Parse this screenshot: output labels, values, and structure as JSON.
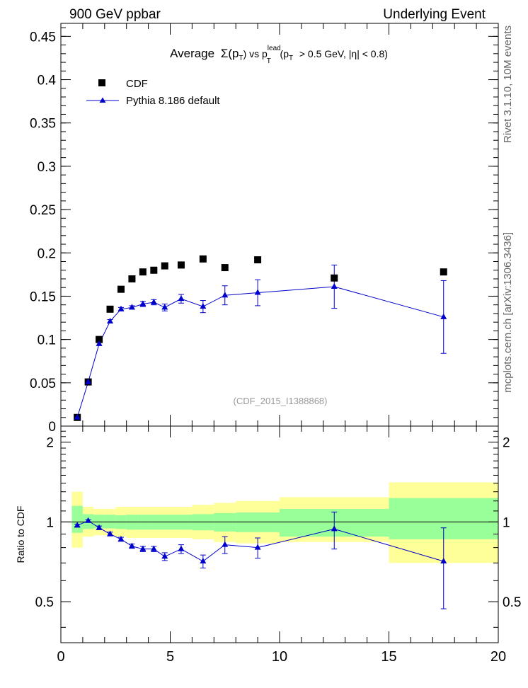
{
  "header": {
    "left": "900 GeV ppbar",
    "right": "Underlying Event"
  },
  "side_labels": {
    "rivet": "Rivet 3.1.10, 10M events",
    "mcplots": "mcplots.cern.ch [arXiv:1306.3436]"
  },
  "colors": {
    "data": "#000000",
    "mc": "#0000cc",
    "band_inner": "#99ff99",
    "band_outer": "#ffff99",
    "watermark": "#999999"
  },
  "chart_data": [
    {
      "type": "scatter",
      "title_parts": {
        "avg": "Average",
        "sigma": "Σ(p",
        "t1": "T",
        "close": ") vs p",
        "lead": "lead",
        "t2": "T",
        "cut1": "(p",
        "t3": "T",
        "cut2": "> 0.5 GeV, |η| < 0.8)"
      },
      "watermark": "(CDF_2015_I1388868)",
      "xlim": [
        0,
        20
      ],
      "ylim": [
        0,
        0.465
      ],
      "yticks": [
        "0",
        "0.05",
        "0.1",
        "0.15",
        "0.2",
        "0.25",
        "0.3",
        "0.35",
        "0.4",
        "0.45"
      ],
      "grid": false,
      "legend_position": "top-left",
      "series": [
        {
          "name": "CDF",
          "marker": "square",
          "x": [
            0.75,
            1.25,
            1.75,
            2.25,
            2.75,
            3.25,
            3.75,
            4.25,
            4.75,
            5.5,
            6.5,
            7.5,
            9.0,
            12.5,
            17.5
          ],
          "y": [
            0.01,
            0.051,
            0.1,
            0.135,
            0.158,
            0.17,
            0.178,
            0.18,
            0.185,
            0.186,
            0.193,
            0.183,
            0.192,
            0.171,
            0.178
          ]
        },
        {
          "name": "Pythia 8.186 default",
          "marker": "triangle",
          "x": [
            0.75,
            1.25,
            1.75,
            2.25,
            2.75,
            3.25,
            3.75,
            4.25,
            4.75,
            5.5,
            6.5,
            7.5,
            9.0,
            12.5,
            17.5
          ],
          "y": [
            0.01,
            0.051,
            0.095,
            0.121,
            0.135,
            0.137,
            0.141,
            0.143,
            0.137,
            0.147,
            0.138,
            0.151,
            0.154,
            0.161,
            0.126
          ],
          "yerr": [
            0.001,
            0.001,
            0.002,
            0.002,
            0.002,
            0.002,
            0.003,
            0.003,
            0.004,
            0.005,
            0.007,
            0.011,
            0.015,
            0.025,
            0.042
          ]
        }
      ]
    },
    {
      "type": "scatter",
      "ylabel": "Ratio to CDF",
      "xlim": [
        0,
        20
      ],
      "ylim": [
        0.35,
        2.3
      ],
      "xticks": [
        "0",
        "5",
        "10",
        "15",
        "20"
      ],
      "yticks": [
        "0.5",
        "1",
        "2"
      ],
      "reference_line": 1,
      "bands": {
        "edges": [
          0.5,
          1.0,
          1.5,
          2.0,
          2.5,
          3.0,
          3.5,
          4.0,
          4.5,
          5.0,
          6.0,
          7.0,
          8.0,
          10.0,
          15.0,
          20.0
        ],
        "inner_low": [
          0.91,
          0.94,
          0.945,
          0.945,
          0.94,
          0.935,
          0.935,
          0.935,
          0.935,
          0.935,
          0.93,
          0.92,
          0.915,
          0.88,
          0.86
        ],
        "inner_high": [
          1.15,
          1.07,
          1.065,
          1.065,
          1.06,
          1.065,
          1.065,
          1.065,
          1.065,
          1.065,
          1.07,
          1.08,
          1.085,
          1.12,
          1.23
        ],
        "outer_low": [
          0.8,
          0.88,
          0.89,
          0.89,
          0.88,
          0.87,
          0.87,
          0.87,
          0.87,
          0.87,
          0.86,
          0.84,
          0.83,
          0.84,
          0.7
        ],
        "outer_high": [
          1.3,
          1.14,
          1.12,
          1.12,
          1.14,
          1.14,
          1.14,
          1.14,
          1.14,
          1.14,
          1.16,
          1.18,
          1.2,
          1.24,
          1.41
        ]
      },
      "series": [
        {
          "name": "Pythia 8.186 default",
          "marker": "triangle",
          "x": [
            0.75,
            1.25,
            1.75,
            2.25,
            2.75,
            3.25,
            3.75,
            4.25,
            4.75,
            5.5,
            6.5,
            7.5,
            9.0,
            12.5,
            17.5
          ],
          "y": [
            0.97,
            1.01,
            0.95,
            0.9,
            0.86,
            0.81,
            0.79,
            0.79,
            0.74,
            0.79,
            0.71,
            0.82,
            0.8,
            0.94,
            0.71
          ],
          "yerr": [
            0.01,
            0.01,
            0.015,
            0.015,
            0.015,
            0.015,
            0.018,
            0.018,
            0.025,
            0.03,
            0.04,
            0.06,
            0.07,
            0.15,
            0.24
          ]
        }
      ]
    }
  ]
}
